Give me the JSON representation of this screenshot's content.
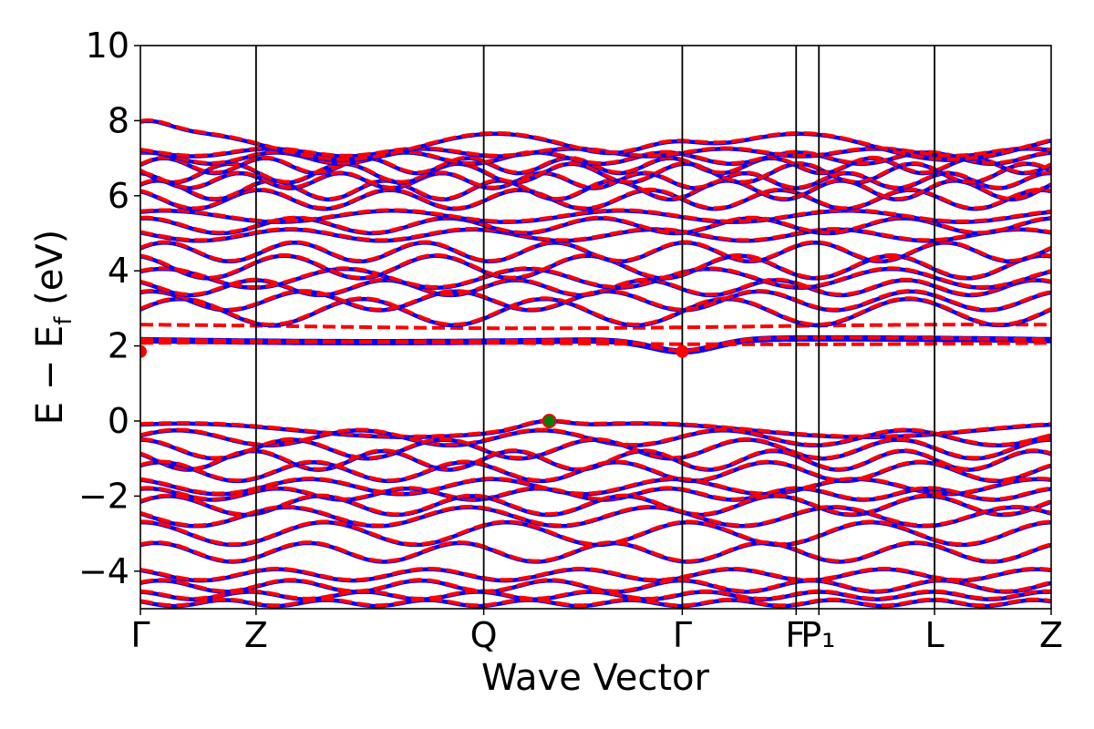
{
  "chart_data": {
    "type": "line",
    "title": "",
    "xlabel": "Wave Vector",
    "ylabel_main": "E − E",
    "ylabel_sub": "f",
    "ylabel_unit": " (eV)",
    "ylim": [
      -5,
      10
    ],
    "yticks": [
      -4,
      -2,
      0,
      2,
      4,
      6,
      8,
      10
    ],
    "ytick_labels": [
      "−4",
      "−2",
      "0",
      "2",
      "4",
      "6",
      "8",
      "10"
    ],
    "xlim": [
      0,
      1
    ],
    "kpoints": [
      {
        "label": "Γ",
        "x": 0.0
      },
      {
        "label": "Z",
        "x": 0.127
      },
      {
        "label": "Q",
        "x": 0.377
      },
      {
        "label": "Γ",
        "x": 0.595
      },
      {
        "label": "F",
        "x": 0.72
      },
      {
        "label": "P₁",
        "x": 0.745
      },
      {
        "label": "L",
        "x": 0.872
      },
      {
        "label": "Z",
        "x": 1.0
      }
    ],
    "grid": false,
    "series": [
      {
        "style": "solid",
        "color": "#0000ff"
      },
      {
        "style": "dashed",
        "color": "#ff0000"
      }
    ],
    "vbm": {
      "x": 0.449,
      "y": 0.0,
      "color": "#008000"
    },
    "cbm": {
      "x": 0.595,
      "y": 1.85,
      "color": "#ff0000"
    },
    "conduction_bands": [
      {
        "base": 2.15,
        "amp": 0.05,
        "freq": 1,
        "phase": 3.1,
        "kind": "cbm"
      },
      {
        "base": 2.5,
        "amp": 0.05,
        "freq": 1,
        "phase": 2.0,
        "kind": "dashed-only"
      },
      {
        "base": 2.05,
        "amp": 0.03,
        "freq": 1,
        "phase": 0.3,
        "kind": "dashed-only"
      },
      {
        "base": 2.9,
        "amp": 0.35,
        "freq": 5,
        "phase": 0.2
      },
      {
        "base": 3.2,
        "amp": 0.25,
        "freq": 6,
        "phase": 1.1
      },
      {
        "base": 3.55,
        "amp": 0.2,
        "freq": 7,
        "phase": 2.3
      },
      {
        "base": 3.8,
        "amp": 0.25,
        "freq": 5,
        "phase": 0.8
      },
      {
        "base": 4.1,
        "amp": 0.3,
        "freq": 6,
        "phase": 1.9
      },
      {
        "base": 4.5,
        "amp": 0.25,
        "freq": 7,
        "phase": 0.4
      },
      {
        "base": 4.95,
        "amp": 0.15,
        "freq": 5,
        "phase": 2.7
      },
      {
        "base": 5.2,
        "amp": 0.2,
        "freq": 6,
        "phase": 1.4
      },
      {
        "base": 5.45,
        "amp": 0.15,
        "freq": 4,
        "phase": 0.9
      },
      {
        "base": 5.9,
        "amp": 0.25,
        "freq": 7,
        "phase": 2.1
      },
      {
        "base": 6.15,
        "amp": 0.25,
        "freq": 8,
        "phase": 0.6
      },
      {
        "base": 6.4,
        "amp": 0.2,
        "freq": 9,
        "phase": 1.7
      },
      {
        "base": 6.6,
        "amp": 0.25,
        "freq": 8,
        "phase": 2.9
      },
      {
        "base": 6.8,
        "amp": 0.2,
        "freq": 9,
        "phase": 0.1
      },
      {
        "base": 7.0,
        "amp": 0.15,
        "freq": 7,
        "phase": 1.3
      },
      {
        "base": 7.15,
        "amp": 0.1,
        "freq": 6,
        "phase": 2.5
      },
      {
        "base": 7.3,
        "amp": 0.35,
        "freq": 3,
        "phase": 0.5,
        "kind": "top"
      }
    ],
    "valence_bands": [
      {
        "base": -0.25,
        "amp": 0.18,
        "freq": 2,
        "phase": 1.0,
        "kind": "vbm"
      },
      {
        "base": -0.45,
        "amp": 0.2,
        "freq": 5,
        "phase": 0.3
      },
      {
        "base": -0.75,
        "amp": 0.25,
        "freq": 6,
        "phase": 1.6
      },
      {
        "base": -1.05,
        "amp": 0.25,
        "freq": 7,
        "phase": 2.4
      },
      {
        "base": -1.35,
        "amp": 0.25,
        "freq": 6,
        "phase": 0.7
      },
      {
        "base": -1.75,
        "amp": 0.2,
        "freq": 5,
        "phase": 2.0
      },
      {
        "base": -1.95,
        "amp": 0.15,
        "freq": 7,
        "phase": 1.2
      },
      {
        "base": -2.25,
        "amp": 0.25,
        "freq": 6,
        "phase": 0.4
      },
      {
        "base": -2.55,
        "amp": 0.25,
        "freq": 5,
        "phase": 2.8
      },
      {
        "base": -3.0,
        "amp": 0.3,
        "freq": 5,
        "phase": 1.5
      },
      {
        "base": -3.5,
        "amp": 0.25,
        "freq": 6,
        "phase": 0.9
      },
      {
        "base": -4.1,
        "amp": 0.15,
        "freq": 6,
        "phase": 2.2
      },
      {
        "base": -4.4,
        "amp": 0.15,
        "freq": 7,
        "phase": 0.6
      },
      {
        "base": -4.65,
        "amp": 0.1,
        "freq": 8,
        "phase": 1.8
      },
      {
        "base": -4.85,
        "amp": 0.08,
        "freq": 9,
        "phase": 2.6
      }
    ]
  }
}
